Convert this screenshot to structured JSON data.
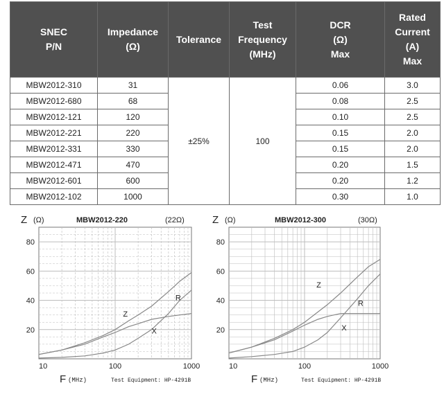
{
  "table": {
    "headers": [
      [
        "SNEC",
        "P/N"
      ],
      [
        "Impedance",
        "(Ω)"
      ],
      [
        "Tolerance"
      ],
      [
        "Test",
        "Frequency",
        "(MHz)"
      ],
      [
        "DCR",
        "(Ω)",
        "Max"
      ],
      [
        "Rated",
        "Current",
        "(A)",
        "Max"
      ]
    ],
    "tolerance": "±25%",
    "test_frequency": "100",
    "rows": [
      {
        "pn": "MBW2012-310",
        "impedance": "31",
        "dcr": "0.06",
        "current": "3.0"
      },
      {
        "pn": "MBW2012-680",
        "impedance": "68",
        "dcr": "0.08",
        "current": "2.5"
      },
      {
        "pn": "MBW2012-121",
        "impedance": "120",
        "dcr": "0.10",
        "current": "2.5"
      },
      {
        "pn": "MBW2012-221",
        "impedance": "220",
        "dcr": "0.15",
        "current": "2.0"
      },
      {
        "pn": "MBW2012-331",
        "impedance": "330",
        "dcr": "0.15",
        "current": "2.0"
      },
      {
        "pn": "MBW2012-471",
        "impedance": "470",
        "dcr": "0.20",
        "current": "1.5"
      },
      {
        "pn": "MBW2012-601",
        "impedance": "600",
        "dcr": "0.20",
        "current": "1.2"
      },
      {
        "pn": "MBW2012-102",
        "impedance": "1000",
        "dcr": "0.30",
        "current": "1.0"
      }
    ]
  },
  "colors": {
    "header_bg": "#505050",
    "header_text": "#ffffff",
    "grid": "#bcbcbc",
    "curve": "#888888"
  },
  "chart_data": [
    {
      "type": "line",
      "title": "MBW2012-220",
      "title_note": "(22Ω)",
      "ylabel_symbol": "Z",
      "ylabel_unit": "(Ω)",
      "xlabel_symbol": "F",
      "xlabel_unit": "(MHz)",
      "equipment": "Test Equipment: HP-4291B",
      "x_scale": "log",
      "xlim": [
        10,
        1000
      ],
      "ylim": [
        0,
        90
      ],
      "x_ticks": [
        "10",
        "100",
        "1000"
      ],
      "y_ticks": [
        "20",
        "40",
        "60",
        "80"
      ],
      "series": [
        {
          "name": "Z",
          "x": [
            10,
            20,
            40,
            70,
            100,
            150,
            200,
            300,
            500,
            700,
            1000
          ],
          "y": [
            3,
            6,
            11,
            16,
            20,
            26,
            30,
            36,
            46,
            53,
            59
          ]
        },
        {
          "name": "R",
          "x": [
            10,
            20,
            40,
            70,
            100,
            150,
            200,
            300,
            500,
            700,
            1000
          ],
          "y": [
            0.5,
            1,
            2,
            4,
            6,
            10,
            14,
            20,
            31,
            40,
            47
          ]
        },
        {
          "name": "X",
          "x": [
            10,
            20,
            40,
            70,
            100,
            150,
            200,
            300,
            500,
            700,
            1000
          ],
          "y": [
            3,
            6,
            10,
            15,
            18,
            22,
            24,
            27,
            29,
            30,
            31
          ]
        }
      ]
    },
    {
      "type": "line",
      "title": "MBW2012-300",
      "title_note": "(30Ω)",
      "ylabel_symbol": "Z",
      "ylabel_unit": "(Ω)",
      "xlabel_symbol": "F",
      "xlabel_unit": "(MHz)",
      "equipment": "Test Equipment: HP-4291B",
      "x_scale": "log",
      "xlim": [
        10,
        1000
      ],
      "ylim": [
        0,
        90
      ],
      "x_ticks": [
        "10",
        "100",
        "1000"
      ],
      "y_ticks": [
        "20",
        "40",
        "60",
        "80"
      ],
      "series": [
        {
          "name": "Z",
          "x": [
            10,
            20,
            40,
            70,
            100,
            150,
            200,
            300,
            500,
            700,
            1000
          ],
          "y": [
            4,
            8,
            14,
            20,
            25,
            32,
            37,
            45,
            56,
            63,
            68
          ]
        },
        {
          "name": "R",
          "x": [
            10,
            20,
            40,
            70,
            100,
            150,
            200,
            300,
            500,
            700,
            1000
          ],
          "y": [
            0.5,
            1.5,
            3,
            5,
            8,
            13,
            18,
            28,
            41,
            50,
            58
          ]
        },
        {
          "name": "X",
          "x": [
            10,
            20,
            40,
            70,
            100,
            150,
            200,
            300,
            500,
            700,
            1000
          ],
          "y": [
            4,
            8,
            13,
            19,
            23,
            27,
            29,
            31,
            31,
            31,
            31
          ]
        }
      ]
    }
  ]
}
